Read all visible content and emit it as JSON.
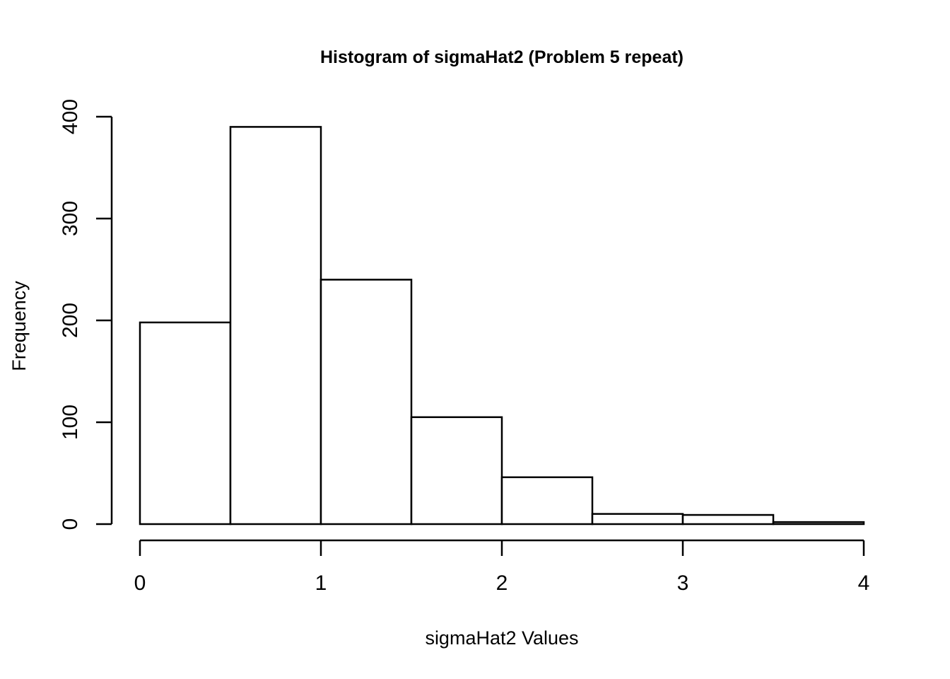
{
  "chart_data": {
    "type": "bar",
    "title": "Histogram of sigmaHat2 (Problem 5 repeat)",
    "xlabel": "sigmaHat2 Values",
    "ylabel": "Frequency",
    "bin_edges": [
      0,
      0.5,
      1,
      1.5,
      2,
      2.5,
      3,
      3.5,
      4
    ],
    "values": [
      198,
      390,
      240,
      105,
      46,
      10,
      9,
      2
    ],
    "xlim": [
      0,
      4
    ],
    "ylim": [
      0,
      400
    ],
    "x_ticks": [
      0,
      1,
      2,
      3,
      4
    ],
    "x_tick_labels": [
      "0",
      "1",
      "2",
      "3",
      "4"
    ],
    "y_ticks": [
      0,
      100,
      200,
      300,
      400
    ],
    "y_tick_labels": [
      "0",
      "100",
      "200",
      "300",
      "400"
    ],
    "grid": false,
    "bar_fill": "#ffffff",
    "bar_stroke": "#000000"
  }
}
